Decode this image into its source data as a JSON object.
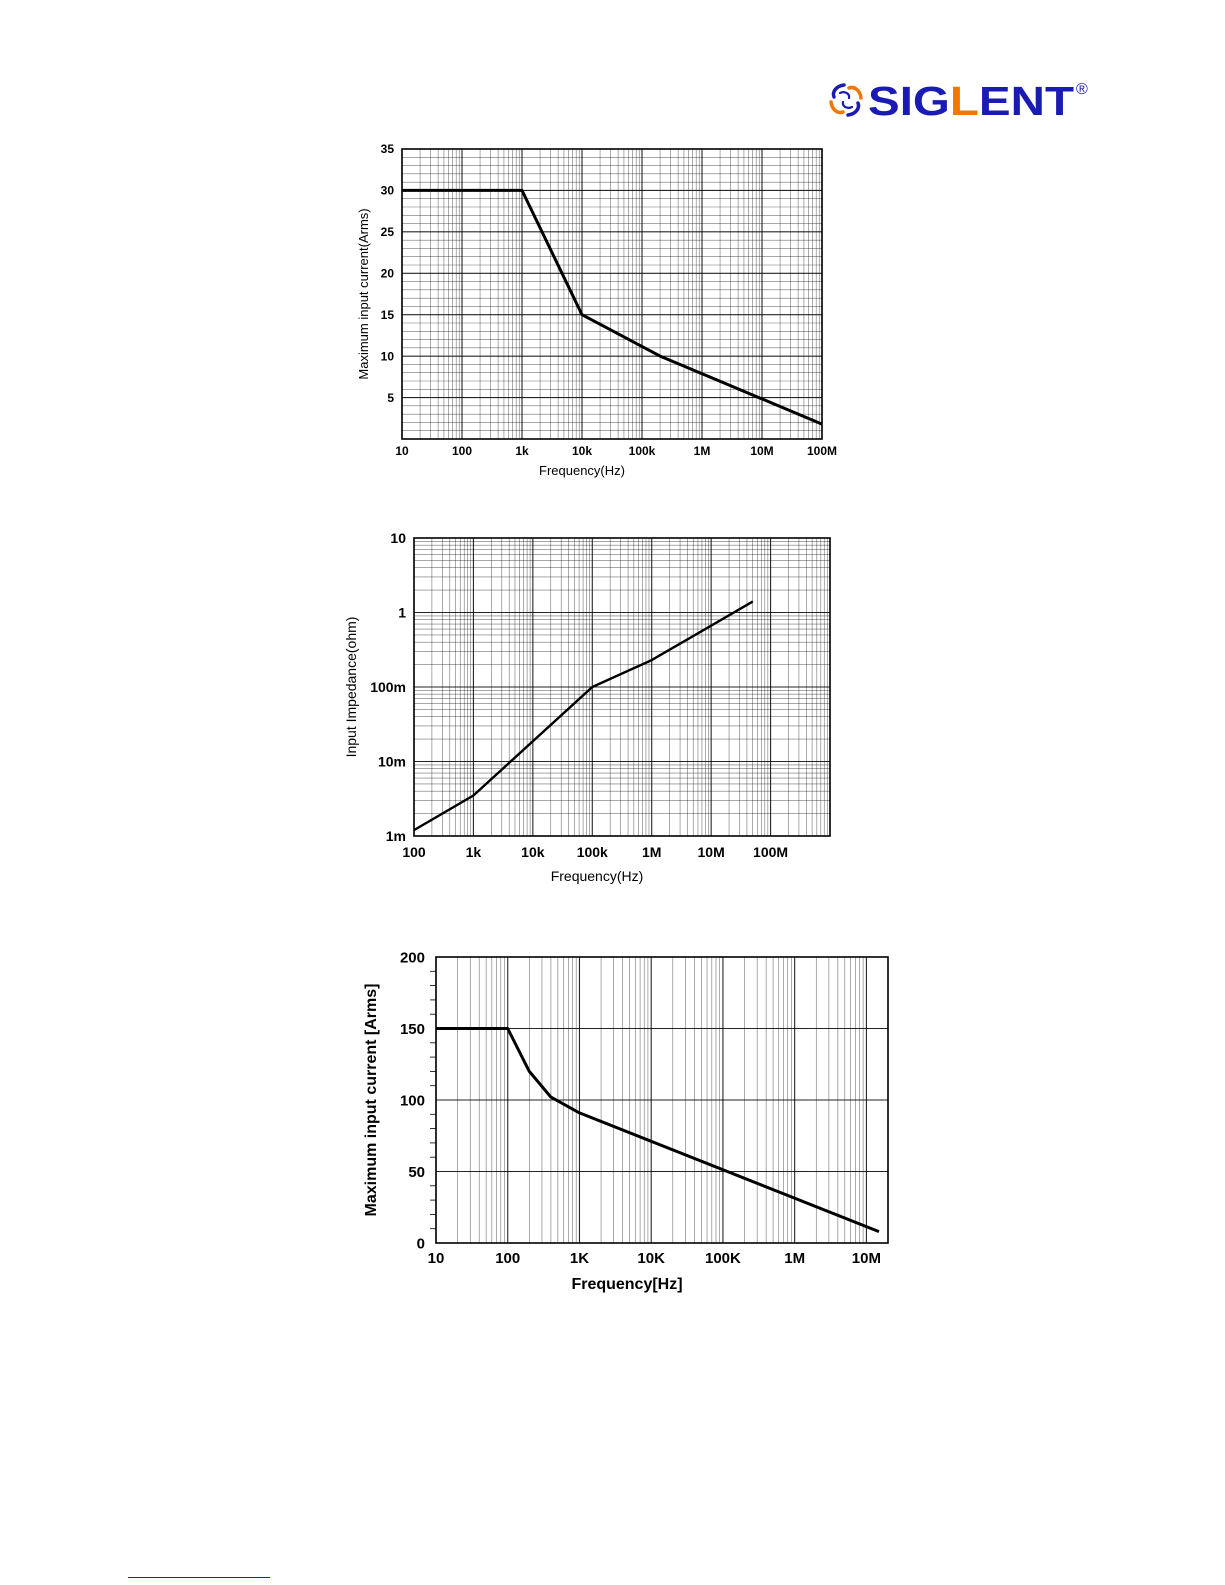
{
  "logo": {
    "text": "SIGLENT",
    "mark": "®",
    "brand_color": "#1a1ab4",
    "accent_color": "#f07800"
  },
  "chart_data": [
    {
      "type": "line",
      "xscale": "log",
      "xlim": [
        10,
        100000000
      ],
      "ylim": [
        0,
        35
      ],
      "xlabel": "Frequency(Hz)",
      "ylabel": "Maximum input current(Arms)",
      "x_ticks": [
        {
          "value": 10,
          "label": "10"
        },
        {
          "value": 100,
          "label": "100"
        },
        {
          "value": 1000,
          "label": "1k"
        },
        {
          "value": 10000,
          "label": "10k"
        },
        {
          "value": 100000,
          "label": "100k"
        },
        {
          "value": 1000000,
          "label": "1M"
        },
        {
          "value": 10000000,
          "label": "10M"
        },
        {
          "value": 100000000,
          "label": "100M"
        }
      ],
      "y_ticks": [
        {
          "value": 5,
          "label": "5"
        },
        {
          "value": 10,
          "label": "10"
        },
        {
          "value": 15,
          "label": "15"
        },
        {
          "value": 20,
          "label": "20"
        },
        {
          "value": 25,
          "label": "25"
        },
        {
          "value": 30,
          "label": "30"
        },
        {
          "value": 35,
          "label": "35"
        }
      ],
      "y_minor_step": 1,
      "grid": true,
      "series": [
        {
          "x": [
            10,
            1000,
            10000,
            200000,
            100000000
          ],
          "y": [
            30,
            30,
            15,
            10,
            1.8
          ]
        }
      ]
    },
    {
      "type": "line",
      "xscale": "log",
      "yscale": "log",
      "xlim": [
        100,
        1000000000
      ],
      "ylim": [
        0.001,
        10
      ],
      "xlabel": "Frequency(Hz)",
      "ylabel": "Input Impedance(ohm)",
      "x_ticks": [
        {
          "value": 100,
          "label": "100"
        },
        {
          "value": 1000,
          "label": "1k"
        },
        {
          "value": 10000,
          "label": "10k"
        },
        {
          "value": 100000,
          "label": "100k"
        },
        {
          "value": 1000000,
          "label": "1M"
        },
        {
          "value": 10000000,
          "label": "10M"
        },
        {
          "value": 100000000,
          "label": "100M"
        }
      ],
      "y_ticks": [
        {
          "value": 0.001,
          "label": "1m"
        },
        {
          "value": 0.01,
          "label": "10m"
        },
        {
          "value": 0.1,
          "label": "100m"
        },
        {
          "value": 1,
          "label": "1"
        },
        {
          "value": 10,
          "label": "10"
        }
      ],
      "grid": true,
      "series": [
        {
          "x": [
            100,
            1000,
            100000,
            1000000,
            50000000
          ],
          "y": [
            0.0012,
            0.0035,
            0.1,
            0.23,
            1.4
          ]
        }
      ]
    },
    {
      "type": "line",
      "xscale": "log",
      "xlim": [
        10,
        20000000
      ],
      "ylim": [
        0,
        200
      ],
      "xlabel": "Frequency[Hz]",
      "ylabel": "Maximum input current [Arms]",
      "x_ticks": [
        {
          "value": 10,
          "label": "10"
        },
        {
          "value": 100,
          "label": "100"
        },
        {
          "value": 1000,
          "label": "1K"
        },
        {
          "value": 10000,
          "label": "10K"
        },
        {
          "value": 100000,
          "label": "100K"
        },
        {
          "value": 1000000,
          "label": "1M"
        },
        {
          "value": 10000000,
          "label": "10M"
        }
      ],
      "y_ticks": [
        {
          "value": 0,
          "label": "0"
        },
        {
          "value": 50,
          "label": "50"
        },
        {
          "value": 100,
          "label": "100"
        },
        {
          "value": 150,
          "label": "150"
        },
        {
          "value": 200,
          "label": "200"
        }
      ],
      "y_minor_step": 10,
      "grid": true,
      "series": [
        {
          "x": [
            10,
            100,
            200,
            400,
            1000,
            15000000
          ],
          "y": [
            150,
            150,
            120,
            102,
            91,
            8
          ]
        }
      ]
    }
  ]
}
